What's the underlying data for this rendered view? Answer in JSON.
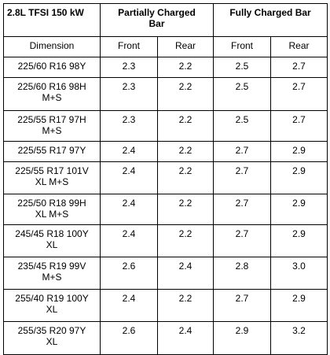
{
  "table": {
    "header": [
      "2.8L TFSI 150 kW",
      "Partially Charged Bar",
      "Fully Charged Bar"
    ],
    "subheader": [
      "Dimension",
      "Front",
      "Rear",
      "Front",
      "Rear"
    ],
    "rows": [
      [
        "225/60 R16 98Y",
        "2.3",
        "2.2",
        "2.5",
        "2.7"
      ],
      [
        "225/60 R16 98H M+S",
        "2.3",
        "2.2",
        "2.5",
        "2.7"
      ],
      [
        "225/55 R17 97H M+S",
        "2.3",
        "2.2",
        "2.5",
        "2.7"
      ],
      [
        "225/55 R17 97Y",
        "2.4",
        "2.2",
        "2.7",
        "2.9"
      ],
      [
        "225/55 R17 101V XL M+S",
        "2.4",
        "2.2",
        "2.7",
        "2.9"
      ],
      [
        "225/50 R18 99H XL M+S",
        "2.4",
        "2.2",
        "2.7",
        "2.9"
      ],
      [
        "245/45 R18 100Y XL",
        "2.4",
        "2.2",
        "2.7",
        "2.9"
      ],
      [
        "235/45 R19 99V M+S",
        "2.6",
        "2.4",
        "2.8",
        "3.0"
      ],
      [
        "255/40 R19 100Y XL",
        "2.4",
        "2.2",
        "2.7",
        "2.9"
      ],
      [
        "255/35 R20 97Y XL",
        "2.6",
        "2.4",
        "2.9",
        "3.2"
      ]
    ]
  }
}
